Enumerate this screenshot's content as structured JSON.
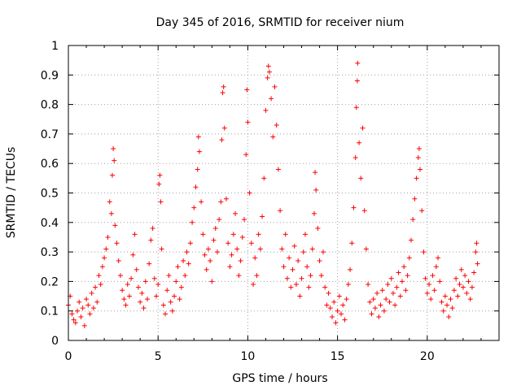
{
  "chart_data": {
    "type": "scatter",
    "title": "Day 345 of 2016, SRMTID for receiver nium",
    "xlabel": "GPS time / hours",
    "ylabel": "SRMTID / TECUs",
    "xlim": [
      0,
      24
    ],
    "ylim": [
      0,
      1
    ],
    "xticks": [
      0,
      5,
      10,
      15,
      20
    ],
    "xtick_labels": [
      "0",
      "5",
      "10",
      "15",
      "20"
    ],
    "yticks": [
      0,
      0.1,
      0.2,
      0.3,
      0.4,
      0.5,
      0.6,
      0.7,
      0.8,
      0.9,
      1
    ],
    "ytick_labels": [
      "0",
      "0.1",
      "0.2",
      "0.3",
      "0.4",
      "0.5",
      "0.6",
      "0.7",
      "0.8",
      "0.9",
      "1"
    ],
    "grid": true,
    "legend": "none",
    "marker": "+",
    "series": [
      {
        "name": "SRMTID",
        "color": "#ff0000",
        "points": [
          [
            0.0,
            0.12
          ],
          [
            0.1,
            0.15
          ],
          [
            0.2,
            0.09
          ],
          [
            0.3,
            0.07
          ],
          [
            0.4,
            0.06
          ],
          [
            0.5,
            0.1
          ],
          [
            0.6,
            0.13
          ],
          [
            0.7,
            0.08
          ],
          [
            0.8,
            0.11
          ],
          [
            0.9,
            0.05
          ],
          [
            1.0,
            0.14
          ],
          [
            1.1,
            0.12
          ],
          [
            1.2,
            0.09
          ],
          [
            1.3,
            0.16
          ],
          [
            1.4,
            0.11
          ],
          [
            1.5,
            0.18
          ],
          [
            1.6,
            0.13
          ],
          [
            1.7,
            0.22
          ],
          [
            1.8,
            0.19
          ],
          [
            1.9,
            0.25
          ],
          [
            2.0,
            0.28
          ],
          [
            2.1,
            0.31
          ],
          [
            2.2,
            0.35
          ],
          [
            2.3,
            0.47
          ],
          [
            2.4,
            0.43
          ],
          [
            2.45,
            0.56
          ],
          [
            2.5,
            0.65
          ],
          [
            2.55,
            0.61
          ],
          [
            2.6,
            0.39
          ],
          [
            2.7,
            0.33
          ],
          [
            2.8,
            0.27
          ],
          [
            2.9,
            0.22
          ],
          [
            3.0,
            0.17
          ],
          [
            3.1,
            0.14
          ],
          [
            3.2,
            0.12
          ],
          [
            3.3,
            0.19
          ],
          [
            3.4,
            0.15
          ],
          [
            3.5,
            0.21
          ],
          [
            3.6,
            0.29
          ],
          [
            3.7,
            0.36
          ],
          [
            3.8,
            0.24
          ],
          [
            3.9,
            0.18
          ],
          [
            4.0,
            0.13
          ],
          [
            4.1,
            0.16
          ],
          [
            4.2,
            0.11
          ],
          [
            4.3,
            0.2
          ],
          [
            4.4,
            0.14
          ],
          [
            4.5,
            0.26
          ],
          [
            4.6,
            0.34
          ],
          [
            4.7,
            0.38
          ],
          [
            4.8,
            0.21
          ],
          [
            4.9,
            0.15
          ],
          [
            5.0,
            0.19
          ],
          [
            5.05,
            0.53
          ],
          [
            5.1,
            0.56
          ],
          [
            5.15,
            0.47
          ],
          [
            5.2,
            0.31
          ],
          [
            5.3,
            0.12
          ],
          [
            5.4,
            0.09
          ],
          [
            5.5,
            0.17
          ],
          [
            5.6,
            0.22
          ],
          [
            5.7,
            0.13
          ],
          [
            5.8,
            0.1
          ],
          [
            5.9,
            0.15
          ],
          [
            6.0,
            0.2
          ],
          [
            6.1,
            0.25
          ],
          [
            6.2,
            0.14
          ],
          [
            6.3,
            0.18
          ],
          [
            6.4,
            0.27
          ],
          [
            6.5,
            0.22
          ],
          [
            6.6,
            0.3
          ],
          [
            6.7,
            0.26
          ],
          [
            6.8,
            0.33
          ],
          [
            6.9,
            0.4
          ],
          [
            7.0,
            0.45
          ],
          [
            7.1,
            0.52
          ],
          [
            7.2,
            0.58
          ],
          [
            7.25,
            0.69
          ],
          [
            7.3,
            0.64
          ],
          [
            7.4,
            0.47
          ],
          [
            7.5,
            0.36
          ],
          [
            7.6,
            0.29
          ],
          [
            7.7,
            0.24
          ],
          [
            7.8,
            0.31
          ],
          [
            7.9,
            0.27
          ],
          [
            8.0,
            0.2
          ],
          [
            8.1,
            0.34
          ],
          [
            8.2,
            0.38
          ],
          [
            8.3,
            0.3
          ],
          [
            8.4,
            0.41
          ],
          [
            8.5,
            0.47
          ],
          [
            8.55,
            0.68
          ],
          [
            8.6,
            0.84
          ],
          [
            8.65,
            0.86
          ],
          [
            8.7,
            0.72
          ],
          [
            8.8,
            0.48
          ],
          [
            8.9,
            0.33
          ],
          [
            9.0,
            0.25
          ],
          [
            9.1,
            0.29
          ],
          [
            9.2,
            0.36
          ],
          [
            9.3,
            0.43
          ],
          [
            9.4,
            0.31
          ],
          [
            9.5,
            0.22
          ],
          [
            9.6,
            0.27
          ],
          [
            9.7,
            0.35
          ],
          [
            9.8,
            0.41
          ],
          [
            9.9,
            0.63
          ],
          [
            9.95,
            0.85
          ],
          [
            10.0,
            0.74
          ],
          [
            10.1,
            0.5
          ],
          [
            10.2,
            0.33
          ],
          [
            10.3,
            0.19
          ],
          [
            10.4,
            0.28
          ],
          [
            10.5,
            0.22
          ],
          [
            10.6,
            0.36
          ],
          [
            10.7,
            0.31
          ],
          [
            10.8,
            0.42
          ],
          [
            10.9,
            0.55
          ],
          [
            11.0,
            0.78
          ],
          [
            11.1,
            0.89
          ],
          [
            11.15,
            0.93
          ],
          [
            11.2,
            0.91
          ],
          [
            11.3,
            0.82
          ],
          [
            11.4,
            0.69
          ],
          [
            11.5,
            0.86
          ],
          [
            11.6,
            0.73
          ],
          [
            11.7,
            0.58
          ],
          [
            11.8,
            0.44
          ],
          [
            11.9,
            0.31
          ],
          [
            12.0,
            0.25
          ],
          [
            12.1,
            0.36
          ],
          [
            12.2,
            0.21
          ],
          [
            12.3,
            0.28
          ],
          [
            12.4,
            0.18
          ],
          [
            12.5,
            0.24
          ],
          [
            12.6,
            0.32
          ],
          [
            12.7,
            0.19
          ],
          [
            12.8,
            0.27
          ],
          [
            12.9,
            0.15
          ],
          [
            13.0,
            0.21
          ],
          [
            13.1,
            0.3
          ],
          [
            13.2,
            0.36
          ],
          [
            13.3,
            0.25
          ],
          [
            13.4,
            0.18
          ],
          [
            13.5,
            0.22
          ],
          [
            13.6,
            0.31
          ],
          [
            13.7,
            0.43
          ],
          [
            13.75,
            0.57
          ],
          [
            13.8,
            0.51
          ],
          [
            13.9,
            0.38
          ],
          [
            14.0,
            0.27
          ],
          [
            14.1,
            0.22
          ],
          [
            14.2,
            0.3
          ],
          [
            14.3,
            0.18
          ],
          [
            14.4,
            0.12
          ],
          [
            14.5,
            0.16
          ],
          [
            14.6,
            0.11
          ],
          [
            14.7,
            0.08
          ],
          [
            14.8,
            0.13
          ],
          [
            14.9,
            0.06
          ],
          [
            15.0,
            0.1
          ],
          [
            15.1,
            0.15
          ],
          [
            15.2,
            0.09
          ],
          [
            15.3,
            0.12
          ],
          [
            15.4,
            0.07
          ],
          [
            15.5,
            0.14
          ],
          [
            15.6,
            0.19
          ],
          [
            15.7,
            0.24
          ],
          [
            15.8,
            0.33
          ],
          [
            15.9,
            0.45
          ],
          [
            16.0,
            0.62
          ],
          [
            16.05,
            0.79
          ],
          [
            16.1,
            0.88
          ],
          [
            16.12,
            0.94
          ],
          [
            16.2,
            0.67
          ],
          [
            16.3,
            0.55
          ],
          [
            16.4,
            0.72
          ],
          [
            16.5,
            0.44
          ],
          [
            16.6,
            0.31
          ],
          [
            16.7,
            0.19
          ],
          [
            16.8,
            0.13
          ],
          [
            16.9,
            0.09
          ],
          [
            17.0,
            0.14
          ],
          [
            17.1,
            0.11
          ],
          [
            17.2,
            0.16
          ],
          [
            17.3,
            0.08
          ],
          [
            17.4,
            0.12
          ],
          [
            17.5,
            0.17
          ],
          [
            17.6,
            0.1
          ],
          [
            17.7,
            0.14
          ],
          [
            17.8,
            0.19
          ],
          [
            17.9,
            0.13
          ],
          [
            18.0,
            0.21
          ],
          [
            18.1,
            0.16
          ],
          [
            18.2,
            0.12
          ],
          [
            18.3,
            0.18
          ],
          [
            18.4,
            0.23
          ],
          [
            18.5,
            0.15
          ],
          [
            18.6,
            0.2
          ],
          [
            18.7,
            0.25
          ],
          [
            18.8,
            0.17
          ],
          [
            18.9,
            0.22
          ],
          [
            19.0,
            0.28
          ],
          [
            19.1,
            0.34
          ],
          [
            19.2,
            0.41
          ],
          [
            19.3,
            0.48
          ],
          [
            19.4,
            0.55
          ],
          [
            19.5,
            0.62
          ],
          [
            19.55,
            0.65
          ],
          [
            19.6,
            0.58
          ],
          [
            19.7,
            0.44
          ],
          [
            19.8,
            0.3
          ],
          [
            19.9,
            0.21
          ],
          [
            20.0,
            0.16
          ],
          [
            20.1,
            0.19
          ],
          [
            20.2,
            0.14
          ],
          [
            20.3,
            0.22
          ],
          [
            20.4,
            0.17
          ],
          [
            20.5,
            0.25
          ],
          [
            20.6,
            0.28
          ],
          [
            20.7,
            0.2
          ],
          [
            20.8,
            0.13
          ],
          [
            20.9,
            0.1
          ],
          [
            21.0,
            0.15
          ],
          [
            21.1,
            0.12
          ],
          [
            21.2,
            0.08
          ],
          [
            21.3,
            0.14
          ],
          [
            21.4,
            0.11
          ],
          [
            21.5,
            0.17
          ],
          [
            21.6,
            0.21
          ],
          [
            21.7,
            0.15
          ],
          [
            21.8,
            0.19
          ],
          [
            21.9,
            0.24
          ],
          [
            22.0,
            0.18
          ],
          [
            22.1,
            0.22
          ],
          [
            22.2,
            0.16
          ],
          [
            22.3,
            0.2
          ],
          [
            22.4,
            0.14
          ],
          [
            22.5,
            0.18
          ],
          [
            22.6,
            0.23
          ],
          [
            22.7,
            0.3
          ],
          [
            22.75,
            0.33
          ],
          [
            22.8,
            0.26
          ]
        ]
      }
    ]
  }
}
